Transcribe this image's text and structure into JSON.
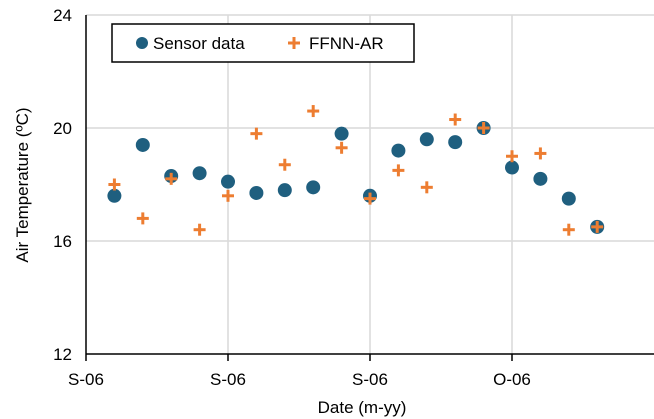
{
  "chart_data": {
    "type": "scatter",
    "xlabel": "Date (m-yy)",
    "ylabel": "Air Temperature (ºC)",
    "ylim": [
      12,
      24
    ],
    "yticks": [
      "12",
      "16",
      "20",
      "24"
    ],
    "xlim": [
      0,
      20
    ],
    "xtick_labels": [
      "S-06",
      "S-06",
      "S-06",
      "O-06"
    ],
    "xtick_values": [
      0,
      5,
      10,
      15
    ],
    "grid": true,
    "legend_position": "top-left",
    "series": [
      {
        "name": "Sensor data",
        "marker": "circle",
        "color": "#1f5f7f",
        "x": [
          1,
          2,
          3,
          4,
          5,
          6,
          7,
          8,
          9,
          10,
          11,
          12,
          13,
          14,
          15,
          16,
          17,
          18
        ],
        "y": [
          17.6,
          19.4,
          18.3,
          18.4,
          18.1,
          17.7,
          17.8,
          17.9,
          19.8,
          17.6,
          19.2,
          19.6,
          19.5,
          20.0,
          18.6,
          18.2,
          17.5,
          16.5
        ]
      },
      {
        "name": "FFNN-AR",
        "marker": "plus",
        "color": "#ed7d31",
        "x": [
          1,
          2,
          3,
          4,
          5,
          6,
          7,
          8,
          9,
          10,
          11,
          12,
          13,
          14,
          15,
          16,
          17,
          18
        ],
        "y": [
          18.0,
          16.8,
          18.2,
          16.4,
          17.6,
          19.8,
          18.7,
          20.6,
          19.3,
          17.5,
          18.5,
          17.9,
          20.3,
          20.0,
          19.0,
          19.1,
          16.4,
          16.5
        ]
      }
    ]
  }
}
